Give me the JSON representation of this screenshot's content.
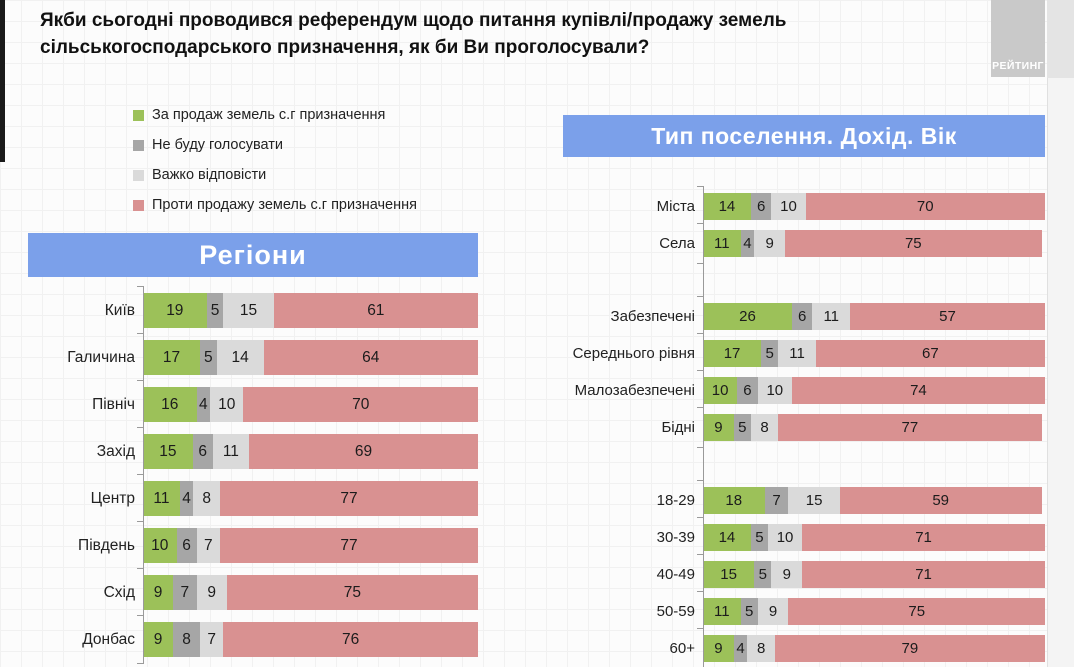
{
  "title": "Якби сьогодні проводився референдум щодо питання купівлі/продажу земель\nсільськогосподарського призначення, як би Ви проголосували?",
  "logo_text": "РЕЙТИНГ",
  "colors": {
    "for": "#9CC159",
    "wont_vote": "#A6A6A6",
    "hard_to_say": "#DADADA",
    "against": "#D99191",
    "header_bg": "#7BA0EA"
  },
  "legend": [
    {
      "key": "for",
      "label": "За продаж земель с.г призначення"
    },
    {
      "key": "wont_vote",
      "label": "Не буду голосувати"
    },
    {
      "key": "hard_to_say",
      "label": "Важко відповісти"
    },
    {
      "key": "against",
      "label": "Проти продажу земель с.г призначення"
    }
  ],
  "chart_data": [
    {
      "type": "bar",
      "orientation": "horizontal",
      "stacked": true,
      "title": "Регіони",
      "xlim": [
        0,
        100
      ],
      "series_labels": [
        "За продаж земель с.г призначення",
        "Не буду голосувати",
        "Важко відповісти",
        "Проти продажу земель с.г призначення"
      ],
      "groups": [
        {
          "categories": [
            "Київ",
            "Галичина",
            "Північ",
            "Захід",
            "Центр",
            "Південь",
            "Схід",
            "Донбас"
          ],
          "values": [
            [
              19,
              5,
              15,
              61
            ],
            [
              17,
              5,
              14,
              64
            ],
            [
              16,
              4,
              10,
              70
            ],
            [
              15,
              6,
              11,
              69
            ],
            [
              11,
              4,
              8,
              77
            ],
            [
              10,
              6,
              7,
              77
            ],
            [
              9,
              7,
              9,
              75
            ],
            [
              9,
              8,
              7,
              76
            ]
          ]
        }
      ]
    },
    {
      "type": "bar",
      "orientation": "horizontal",
      "stacked": true,
      "title": "Тип поселення. Дохід. Вік",
      "xlim": [
        0,
        100
      ],
      "series_labels": [
        "За продаж земель с.г призначення",
        "Не буду голосувати",
        "Важко відповісти",
        "Проти продажу земель с.г призначення"
      ],
      "groups": [
        {
          "categories": [
            "Міста",
            "Села"
          ],
          "values": [
            [
              14,
              6,
              10,
              70
            ],
            [
              11,
              4,
              9,
              75
            ]
          ]
        },
        {
          "categories": [
            "Забезпечені",
            "Середнього рівня",
            "Малозабезпечені",
            "Бідні"
          ],
          "values": [
            [
              26,
              6,
              11,
              57
            ],
            [
              17,
              5,
              11,
              67
            ],
            [
              10,
              6,
              10,
              74
            ],
            [
              9,
              5,
              8,
              77
            ]
          ]
        },
        {
          "categories": [
            "18-29",
            "30-39",
            "40-49",
            "50-59",
            "60+"
          ],
          "values": [
            [
              18,
              7,
              15,
              59
            ],
            [
              14,
              5,
              10,
              71
            ],
            [
              15,
              5,
              9,
              71
            ],
            [
              11,
              5,
              9,
              75
            ],
            [
              9,
              4,
              8,
              79
            ]
          ]
        }
      ]
    }
  ]
}
